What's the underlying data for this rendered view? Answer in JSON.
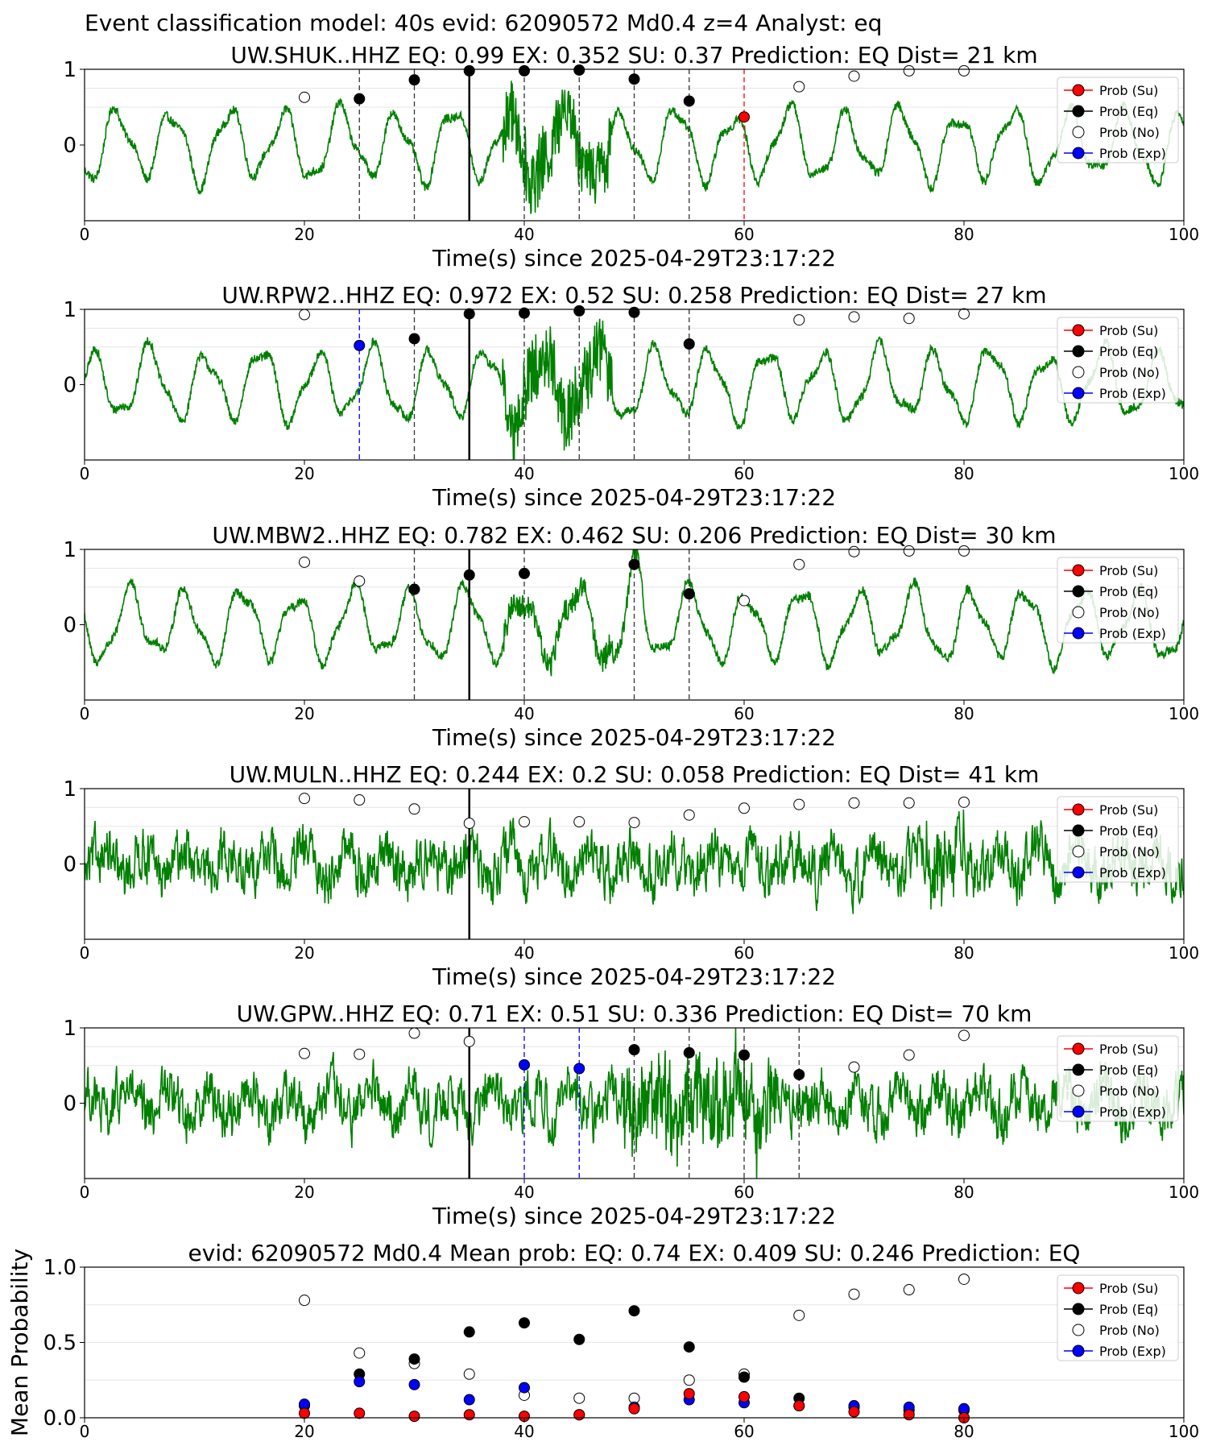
{
  "suptitle": "Event classification model: 40s evid: 62090572 Md0.4 z=4 Analyst: eq",
  "colors": {
    "waveform": "#008000",
    "su": "#ff0000",
    "eq": "#000000",
    "no": "#ffffff",
    "exp": "#0000ff",
    "pick": "#000000"
  },
  "legend": [
    "Prob (Su)",
    "Prob (Eq)",
    "Prob (No)",
    "Prob (Exp)"
  ],
  "chart_data": [
    {
      "type": "scatter",
      "title": "UW.SHUK..HHZ   EQ: 0.99  EX: 0.352  SU: 0.37   Prediction: EQ    Dist= 21 km",
      "xlabel": "Time(s) since 2025-04-29T23:17:22",
      "xlim": [
        0,
        100
      ],
      "ylim": [
        -1,
        1
      ],
      "xticks": [
        "0",
        "20",
        "40",
        "60",
        "80",
        "100"
      ],
      "yticks": [
        "1",
        "0"
      ],
      "pick_time": 35,
      "waveform_style": "smooth",
      "points": [
        {
          "x": 20,
          "y": 0.63,
          "class": "no"
        },
        {
          "x": 25,
          "y": 0.61,
          "class": "eq"
        },
        {
          "x": 30,
          "y": 0.86,
          "class": "eq"
        },
        {
          "x": 35,
          "y": 0.98,
          "class": "eq"
        },
        {
          "x": 40,
          "y": 0.98,
          "class": "eq"
        },
        {
          "x": 45,
          "y": 0.99,
          "class": "eq"
        },
        {
          "x": 50,
          "y": 0.87,
          "class": "eq"
        },
        {
          "x": 55,
          "y": 0.58,
          "class": "eq"
        },
        {
          "x": 60,
          "y": 0.37,
          "class": "su"
        },
        {
          "x": 65,
          "y": 0.77,
          "class": "no"
        },
        {
          "x": 70,
          "y": 0.91,
          "class": "no"
        },
        {
          "x": 75,
          "y": 0.98,
          "class": "no"
        },
        {
          "x": 80,
          "y": 0.98,
          "class": "no"
        }
      ]
    },
    {
      "type": "scatter",
      "title": "UW.RPW2..HHZ   EQ: 0.972  EX: 0.52  SU: 0.258   Prediction: EQ    Dist= 27 km",
      "xlabel": "Time(s) since 2025-04-29T23:17:22",
      "xlim": [
        0,
        100
      ],
      "ylim": [
        -1,
        1
      ],
      "xticks": [
        "0",
        "20",
        "40",
        "60",
        "80",
        "100"
      ],
      "yticks": [
        "1",
        "0"
      ],
      "pick_time": 35,
      "waveform_style": "smooth",
      "points": [
        {
          "x": 20,
          "y": 0.93,
          "class": "no"
        },
        {
          "x": 25,
          "y": 0.52,
          "class": "exp"
        },
        {
          "x": 30,
          "y": 0.61,
          "class": "eq"
        },
        {
          "x": 35,
          "y": 0.94,
          "class": "eq"
        },
        {
          "x": 40,
          "y": 0.95,
          "class": "eq"
        },
        {
          "x": 45,
          "y": 0.98,
          "class": "eq"
        },
        {
          "x": 50,
          "y": 0.96,
          "class": "eq"
        },
        {
          "x": 55,
          "y": 0.54,
          "class": "eq"
        },
        {
          "x": 65,
          "y": 0.86,
          "class": "no"
        },
        {
          "x": 70,
          "y": 0.9,
          "class": "no"
        },
        {
          "x": 75,
          "y": 0.88,
          "class": "no"
        },
        {
          "x": 80,
          "y": 0.94,
          "class": "no"
        }
      ]
    },
    {
      "type": "scatter",
      "title": "UW.MBW2..HHZ   EQ: 0.782  EX: 0.462  SU: 0.206   Prediction: EQ    Dist= 30 km",
      "xlabel": "Time(s) since 2025-04-29T23:17:22",
      "xlim": [
        0,
        100
      ],
      "ylim": [
        -1,
        1
      ],
      "xticks": [
        "0",
        "20",
        "40",
        "60",
        "80",
        "100"
      ],
      "yticks": [
        "1",
        "0"
      ],
      "pick_time": 35,
      "waveform_style": "smooth",
      "points": [
        {
          "x": 20,
          "y": 0.83,
          "class": "no"
        },
        {
          "x": 25,
          "y": 0.58,
          "class": "no"
        },
        {
          "x": 30,
          "y": 0.47,
          "class": "eq"
        },
        {
          "x": 35,
          "y": 0.66,
          "class": "eq"
        },
        {
          "x": 40,
          "y": 0.68,
          "class": "eq"
        },
        {
          "x": 50,
          "y": 0.8,
          "class": "eq"
        },
        {
          "x": 55,
          "y": 0.41,
          "class": "eq"
        },
        {
          "x": 60,
          "y": 0.32,
          "class": "no"
        },
        {
          "x": 65,
          "y": 0.8,
          "class": "no"
        },
        {
          "x": 70,
          "y": 0.97,
          "class": "no"
        },
        {
          "x": 75,
          "y": 0.98,
          "class": "no"
        },
        {
          "x": 80,
          "y": 0.98,
          "class": "no"
        }
      ]
    },
    {
      "type": "scatter",
      "title": "UW.MULN..HHZ   EQ: 0.244  EX: 0.2  SU: 0.058   Prediction: EQ    Dist= 41 km",
      "xlabel": "Time(s) since 2025-04-29T23:17:22",
      "xlim": [
        0,
        100
      ],
      "ylim": [
        -1,
        1
      ],
      "xticks": [
        "0",
        "20",
        "40",
        "60",
        "80",
        "100"
      ],
      "yticks": [
        "1",
        "0"
      ],
      "pick_time": 35,
      "waveform_style": "noisy",
      "points": [
        {
          "x": 20,
          "y": 0.87,
          "class": "no"
        },
        {
          "x": 25,
          "y": 0.85,
          "class": "no"
        },
        {
          "x": 30,
          "y": 0.73,
          "class": "no"
        },
        {
          "x": 35,
          "y": 0.54,
          "class": "no"
        },
        {
          "x": 40,
          "y": 0.56,
          "class": "no"
        },
        {
          "x": 45,
          "y": 0.56,
          "class": "no"
        },
        {
          "x": 50,
          "y": 0.55,
          "class": "no"
        },
        {
          "x": 55,
          "y": 0.65,
          "class": "no"
        },
        {
          "x": 60,
          "y": 0.74,
          "class": "no"
        },
        {
          "x": 65,
          "y": 0.79,
          "class": "no"
        },
        {
          "x": 70,
          "y": 0.81,
          "class": "no"
        },
        {
          "x": 75,
          "y": 0.81,
          "class": "no"
        },
        {
          "x": 80,
          "y": 0.82,
          "class": "no"
        }
      ]
    },
    {
      "type": "scatter",
      "title": "UW.GPW..HHZ   EQ: 0.71  EX: 0.51  SU: 0.336   Prediction: EQ    Dist= 70 km",
      "xlabel": "Time(s) since 2025-04-29T23:17:22",
      "xlim": [
        0,
        100
      ],
      "ylim": [
        -1,
        1
      ],
      "xticks": [
        "0",
        "20",
        "40",
        "60",
        "80",
        "100"
      ],
      "yticks": [
        "1",
        "0"
      ],
      "pick_time": 35,
      "waveform_style": "noisy",
      "points": [
        {
          "x": 20,
          "y": 0.66,
          "class": "no"
        },
        {
          "x": 25,
          "y": 0.65,
          "class": "no"
        },
        {
          "x": 30,
          "y": 0.93,
          "class": "no"
        },
        {
          "x": 35,
          "y": 0.82,
          "class": "no"
        },
        {
          "x": 40,
          "y": 0.51,
          "class": "exp"
        },
        {
          "x": 45,
          "y": 0.46,
          "class": "exp"
        },
        {
          "x": 50,
          "y": 0.71,
          "class": "eq"
        },
        {
          "x": 55,
          "y": 0.67,
          "class": "eq"
        },
        {
          "x": 60,
          "y": 0.64,
          "class": "eq"
        },
        {
          "x": 65,
          "y": 0.38,
          "class": "eq"
        },
        {
          "x": 70,
          "y": 0.48,
          "class": "no"
        },
        {
          "x": 75,
          "y": 0.64,
          "class": "no"
        },
        {
          "x": 80,
          "y": 0.9,
          "class": "no"
        }
      ]
    },
    {
      "type": "scatter",
      "title": "evid: 62090572  Md0.4   Mean prob:    EQ: 0.74  EX: 0.409  SU: 0.246   Prediction: EQ",
      "ylabel": "Mean Probability",
      "xlim": [
        0,
        100
      ],
      "ylim": [
        0,
        1
      ],
      "xticks": [
        "0",
        "20",
        "40",
        "60",
        "80",
        "100"
      ],
      "yticks": [
        "1.0",
        "0.5",
        "0.0"
      ],
      "series": [
        {
          "name": "Prob (No)",
          "class": "no",
          "x": [
            20,
            25,
            30,
            35,
            40,
            45,
            50,
            55,
            60,
            65,
            70,
            75,
            80
          ],
          "y": [
            0.78,
            0.43,
            0.36,
            0.29,
            0.15,
            0.13,
            0.13,
            0.25,
            0.29,
            0.68,
            0.82,
            0.85,
            0.92
          ]
        },
        {
          "name": "Prob (Eq)",
          "class": "eq",
          "x": [
            20,
            25,
            30,
            35,
            40,
            45,
            50,
            55,
            60,
            65,
            70,
            75,
            80
          ],
          "y": [
            0.08,
            0.29,
            0.39,
            0.57,
            0.63,
            0.52,
            0.71,
            0.47,
            0.27,
            0.13,
            0.07,
            0.05,
            0.05
          ]
        },
        {
          "name": "Prob (Exp)",
          "class": "exp",
          "x": [
            20,
            25,
            30,
            35,
            40,
            45,
            50,
            55,
            60,
            65,
            70,
            75,
            80
          ],
          "y": [
            0.09,
            0.24,
            0.22,
            0.12,
            0.2,
            0.02,
            0.07,
            0.12,
            0.1,
            0.08,
            0.08,
            0.07,
            0.06
          ]
        },
        {
          "name": "Prob (Su)",
          "class": "su",
          "x": [
            20,
            25,
            30,
            35,
            40,
            45,
            50,
            55,
            60,
            65,
            70,
            75,
            80
          ],
          "y": [
            0.03,
            0.03,
            0.01,
            0.02,
            0.01,
            0.02,
            0.06,
            0.16,
            0.14,
            0.08,
            0.04,
            0.02,
            0.0
          ]
        }
      ]
    }
  ]
}
